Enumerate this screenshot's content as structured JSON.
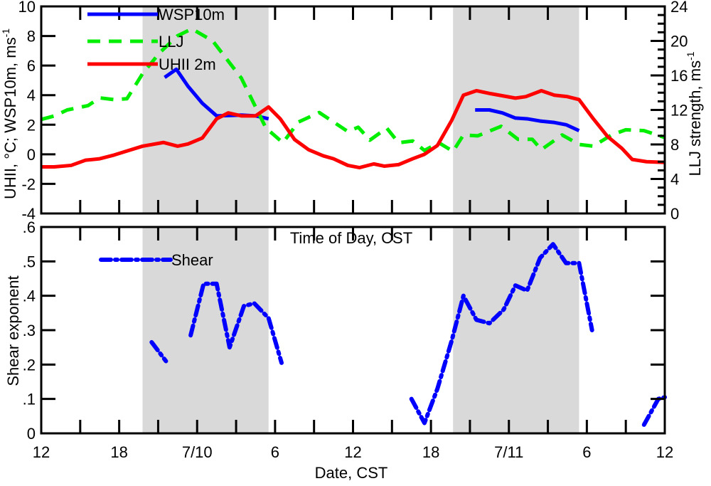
{
  "chart_data": [
    {
      "type": "line",
      "panel": "top",
      "xlabel": "Time of Day, CST",
      "ylabel": "UHII, °C; WSP10m, ms-1",
      "ylabel_parts": {
        "main": "UHII, °C; WSP10m, ms",
        "sup": "-1"
      },
      "y2label": "LLJ strength, ms-1",
      "y2label_parts": {
        "main": "LLJ strength, ms",
        "sup": "-1"
      },
      "xlim_hours": [
        0,
        48
      ],
      "ylim": [
        -4,
        10
      ],
      "y2lim": [
        0,
        24
      ],
      "yticks": [
        "-4",
        "-2",
        "0",
        "2",
        "4",
        "6",
        "8",
        "10"
      ],
      "y2ticks": [
        "0",
        "4",
        "8",
        "12",
        "16",
        "20",
        "24"
      ],
      "shaded_night_hours": [
        [
          7.8,
          17.5
        ],
        [
          31.7,
          41.4
        ]
      ],
      "legend": [
        "WSP10m",
        "LLJ",
        "UHII 2m"
      ],
      "series": [
        {
          "name": "WSP10m",
          "axis": "left",
          "color": "#0000ff",
          "style": "solid",
          "segments": [
            [
              [
                9.5,
                5.2
              ],
              [
                10.4,
                5.75
              ],
              [
                11.3,
                4.6
              ],
              [
                12.4,
                3.45
              ],
              [
                13.5,
                2.6
              ],
              [
                15.4,
                2.65
              ],
              [
                16.5,
                2.6
              ],
              [
                17.5,
                2.4
              ]
            ],
            [
              [
                33.4,
                3.0
              ],
              [
                34.5,
                3.0
              ],
              [
                35.5,
                2.8
              ],
              [
                36.5,
                2.45
              ],
              [
                37.4,
                2.4
              ],
              [
                38.4,
                2.25
              ],
              [
                39.5,
                2.15
              ],
              [
                40.4,
                2.0
              ],
              [
                41.4,
                1.6
              ]
            ]
          ]
        },
        {
          "name": "LLJ",
          "axis": "right",
          "color": "#00ee00",
          "style": "dashed",
          "segments": [
            [
              [
                0,
                10.9
              ],
              [
                1,
                11.3
              ],
              [
                2,
                12
              ],
              [
                3.6,
                12.5
              ],
              [
                4.5,
                13.4
              ],
              [
                5.6,
                13.2
              ],
              [
                6.6,
                13.3
              ],
              [
                7.8,
                16.2
              ],
              [
                9.1,
                18.6
              ],
              [
                10.5,
                20.6
              ],
              [
                11.6,
                21.4
              ],
              [
                13.2,
                20
              ],
              [
                15.4,
                15.7
              ],
              [
                17.3,
                9.9
              ],
              [
                18.6,
                8.2
              ],
              [
                19.8,
                10.6
              ],
              [
                21.4,
                11.7
              ],
              [
                23.6,
                9.5
              ],
              [
                24.4,
                10
              ],
              [
                25.3,
                8.5
              ],
              [
                26.6,
                9.9
              ],
              [
                27.5,
                8.2
              ],
              [
                28.6,
                8.4
              ],
              [
                29.5,
                7.3
              ],
              [
                30.6,
                8.2
              ],
              [
                31.7,
                7.2
              ],
              [
                32.5,
                9.1
              ],
              [
                33.6,
                9
              ],
              [
                35.4,
                10.1
              ],
              [
                36.7,
                8.6
              ],
              [
                37.8,
                8.6
              ],
              [
                38.5,
                7.4
              ],
              [
                40.1,
                9.1
              ],
              [
                41.4,
                8
              ],
              [
                42.5,
                7.8
              ],
              [
                43.9,
                9.1
              ],
              [
                45,
                9.7
              ],
              [
                46.4,
                9.6
              ],
              [
                48,
                8.8
              ]
            ]
          ]
        },
        {
          "name": "UHII 2m",
          "axis": "left",
          "color": "#ff0000",
          "style": "solid",
          "segments": [
            [
              [
                0,
                -0.85
              ],
              [
                1,
                -0.85
              ],
              [
                2.3,
                -0.75
              ],
              [
                3.4,
                -0.4
              ],
              [
                4.5,
                -0.3
              ],
              [
                5.6,
                -0.05
              ],
              [
                6.7,
                0.25
              ],
              [
                7.8,
                0.55
              ],
              [
                9.4,
                0.8
              ],
              [
                10.5,
                0.55
              ],
              [
                11.3,
                0.7
              ],
              [
                12.4,
                1.1
              ],
              [
                13.5,
                2.4
              ],
              [
                14.4,
                2.8
              ],
              [
                15.4,
                2.6
              ],
              [
                16.5,
                2.6
              ],
              [
                17.5,
                3.2
              ],
              [
                18.4,
                2.4
              ],
              [
                19.5,
                1.0
              ],
              [
                20.6,
                0.3
              ],
              [
                21.7,
                -0.1
              ],
              [
                22.5,
                -0.3
              ],
              [
                23.6,
                -0.75
              ],
              [
                24.5,
                -0.9
              ],
              [
                25.6,
                -0.65
              ],
              [
                26.4,
                -0.8
              ],
              [
                27.5,
                -0.7
              ],
              [
                28.6,
                -0.3
              ],
              [
                29.5,
                0
              ],
              [
                30.5,
                0.6
              ],
              [
                31.6,
                2.3
              ],
              [
                32.5,
                4.0
              ],
              [
                33.5,
                4.3
              ],
              [
                34.6,
                4.1
              ],
              [
                36.5,
                3.8
              ],
              [
                37.3,
                3.9
              ],
              [
                38.5,
                4.3
              ],
              [
                39.5,
                4.0
              ],
              [
                40.5,
                3.9
              ],
              [
                41.4,
                3.7
              ],
              [
                42.5,
                2.4
              ],
              [
                43.6,
                1.2
              ],
              [
                44.7,
                0.4
              ],
              [
                45.5,
                -0.35
              ],
              [
                46.6,
                -0.5
              ],
              [
                48,
                -0.55
              ]
            ]
          ]
        }
      ]
    },
    {
      "type": "line",
      "panel": "bottom",
      "xlabel": "Date, CST",
      "ylabel": "Shear exponent",
      "xlim_hours": [
        0,
        48
      ],
      "ylim": [
        0,
        0.6
      ],
      "yticks": [
        "0",
        ".1",
        ".2",
        ".3",
        ".4",
        ".5",
        ".6"
      ],
      "xticklabels": [
        "12",
        "18",
        "7/10",
        "6",
        "12",
        "18",
        "7/11",
        "6",
        "12"
      ],
      "shaded_night_hours": [
        [
          7.8,
          17.5
        ],
        [
          31.7,
          41.4
        ]
      ],
      "legend": [
        "Shear"
      ],
      "series": [
        {
          "name": "Shear",
          "color": "#0000ff",
          "style": "dashdot",
          "segments": [
            [
              [
                8.5,
                0.265
              ],
              [
                9.6,
                0.21
              ]
            ],
            [
              [
                11.5,
                0.285
              ],
              [
                12.5,
                0.435
              ],
              [
                13.5,
                0.435
              ],
              [
                14.5,
                0.25
              ],
              [
                15.6,
                0.37
              ],
              [
                16.4,
                0.378
              ],
              [
                17.5,
                0.335
              ],
              [
                18.5,
                0.205
              ]
            ],
            [
              [
                28.5,
                0.1
              ],
              [
                29.5,
                0.03
              ],
              [
                30.5,
                0.13
              ],
              [
                31.6,
                0.27
              ],
              [
                32.5,
                0.4
              ],
              [
                33.5,
                0.33
              ],
              [
                34.5,
                0.32
              ],
              [
                35.6,
                0.36
              ],
              [
                36.5,
                0.43
              ],
              [
                37.4,
                0.415
              ],
              [
                38.4,
                0.51
              ],
              [
                39.4,
                0.55
              ],
              [
                40.4,
                0.495
              ],
              [
                41.4,
                0.495
              ],
              [
                42.4,
                0.3
              ]
            ],
            [
              [
                46.4,
                0.025
              ],
              [
                47.5,
                0.1
              ],
              [
                48,
                0.105
              ]
            ]
          ]
        }
      ]
    }
  ]
}
